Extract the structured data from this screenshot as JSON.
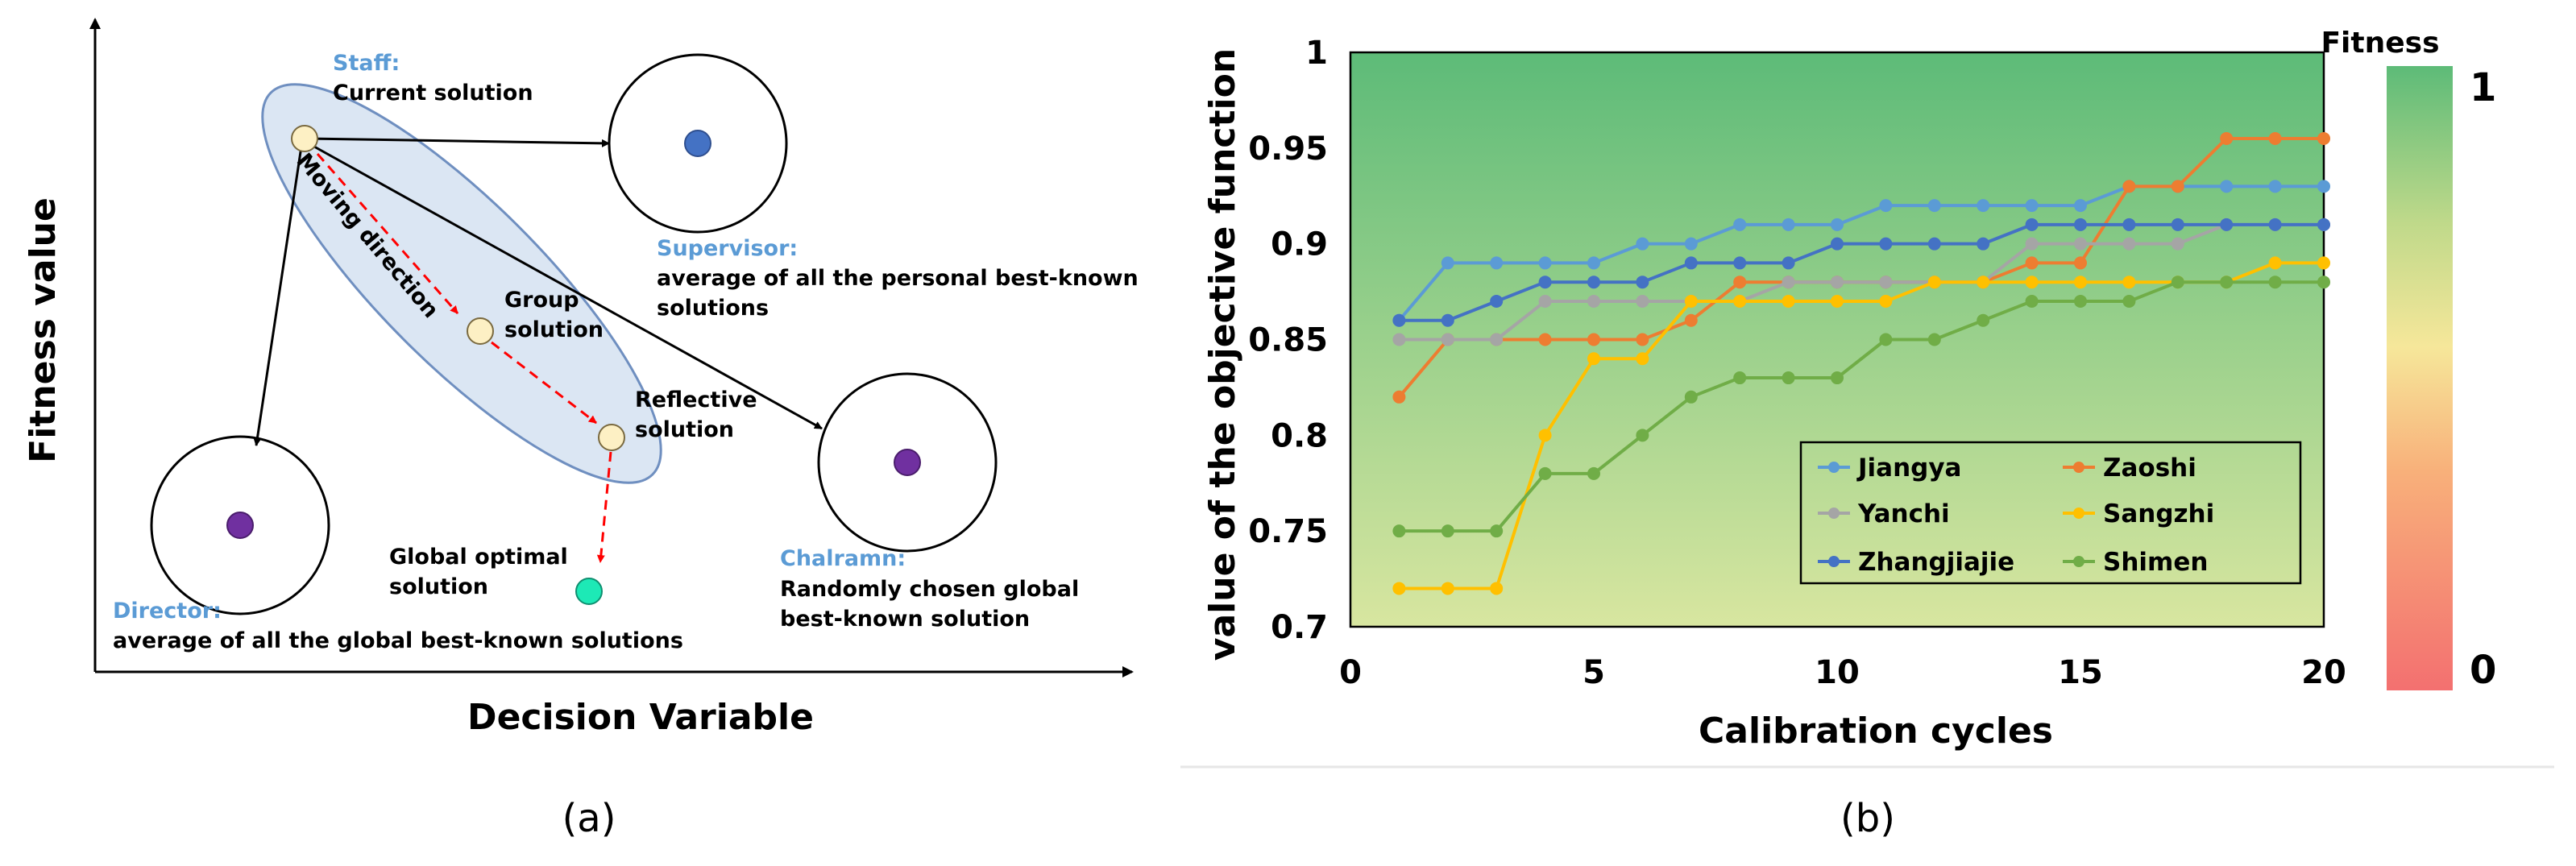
{
  "panel_a": {
    "caption": "(a)",
    "xlabel": "Decision Variable",
    "ylabel": "Fitness value",
    "roles": {
      "staff_title": "Staff:",
      "staff_desc": "Current solution",
      "supervisor_title": "Supervisor:",
      "supervisor_desc_1": "average of all the personal best-known",
      "supervisor_desc_2": "solutions",
      "director_title": "Director:",
      "director_desc": "average of all the global best-known solutions",
      "chalramn_title": "Chalramn:",
      "chalramn_desc_1": "Randomly chosen global",
      "chalramn_desc_2": "best-known solution"
    },
    "labels": {
      "moving_direction": "Moving direction",
      "group_1": "Group",
      "group_2": "solution",
      "reflective_1": "Reflective",
      "reflective_2": "solution",
      "global_1": "Global optimal",
      "global_2": "solution"
    },
    "colors": {
      "title_blue": "#5b9bd5",
      "ellipse_fill": "#dbe6f3",
      "ellipse_stroke": "#6f8fc0",
      "solution_fill": "#fdf0c4",
      "supervisor_dot": "#4472c4",
      "purple_dot": "#7030a0",
      "global_dot": "#1de9b6",
      "dashed_arrow": "#ff0000"
    }
  },
  "chart_data": {
    "type": "line",
    "caption": "(b)",
    "xlabel": "Calibration cycles",
    "ylabel": "value of the objective function",
    "xlim": [
      0,
      20
    ],
    "ylim": [
      0.7,
      1
    ],
    "xticks": [
      0,
      5,
      10,
      15,
      20
    ],
    "yticks": [
      0.7,
      0.75,
      0.8,
      0.85,
      0.9,
      0.95,
      1
    ],
    "ytick_labels": [
      "0.7",
      "0.75",
      "0.8",
      "0.85",
      "0.9",
      "0.95",
      "1"
    ],
    "legend_position": "bottom-right",
    "colorbar": {
      "title": "Fitness",
      "top_label": "1",
      "bottom_label": "0"
    },
    "x": [
      1,
      2,
      3,
      4,
      5,
      6,
      7,
      8,
      9,
      10,
      11,
      12,
      13,
      14,
      15,
      16,
      17,
      18,
      19,
      20
    ],
    "series": [
      {
        "name": "Jiangya",
        "color": "#5b9bd5",
        "values": [
          0.86,
          0.89,
          0.89,
          0.89,
          0.89,
          0.9,
          0.9,
          0.91,
          0.91,
          0.91,
          0.92,
          0.92,
          0.92,
          0.92,
          0.92,
          0.93,
          0.93,
          0.93,
          0.93,
          0.93
        ]
      },
      {
        "name": "Zaoshi",
        "color": "#ed7d31",
        "values": [
          0.82,
          0.85,
          0.85,
          0.85,
          0.85,
          0.85,
          0.86,
          0.88,
          0.88,
          0.88,
          0.88,
          0.88,
          0.88,
          0.89,
          0.89,
          0.93,
          0.93,
          0.955,
          0.955,
          0.955
        ]
      },
      {
        "name": "Yanchi",
        "color": "#a5a5a5",
        "values": [
          0.85,
          0.85,
          0.85,
          0.87,
          0.87,
          0.87,
          0.87,
          0.87,
          0.88,
          0.88,
          0.88,
          0.88,
          0.88,
          0.9,
          0.9,
          0.9,
          0.9,
          0.91,
          0.91,
          0.91
        ]
      },
      {
        "name": "Sangzhi",
        "color": "#ffc000",
        "values": [
          0.72,
          0.72,
          0.72,
          0.8,
          0.84,
          0.84,
          0.87,
          0.87,
          0.87,
          0.87,
          0.87,
          0.88,
          0.88,
          0.88,
          0.88,
          0.88,
          0.88,
          0.88,
          0.89,
          0.89
        ]
      },
      {
        "name": "Zhangjiajie",
        "color": "#4472c4",
        "values": [
          0.86,
          0.86,
          0.87,
          0.88,
          0.88,
          0.88,
          0.89,
          0.89,
          0.89,
          0.9,
          0.9,
          0.9,
          0.9,
          0.91,
          0.91,
          0.91,
          0.91,
          0.91,
          0.91,
          0.91
        ]
      },
      {
        "name": "Shimen",
        "color": "#70ad47",
        "values": [
          0.75,
          0.75,
          0.75,
          0.78,
          0.78,
          0.8,
          0.82,
          0.83,
          0.83,
          0.83,
          0.85,
          0.85,
          0.86,
          0.87,
          0.87,
          0.87,
          0.88,
          0.88,
          0.88,
          0.88
        ]
      }
    ]
  }
}
